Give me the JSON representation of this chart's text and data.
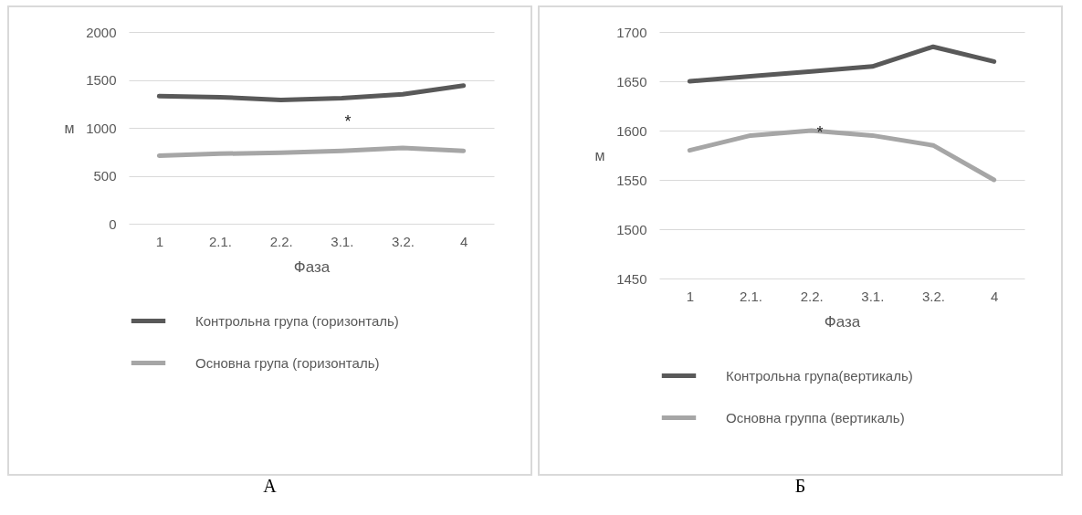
{
  "chart_data": [
    {
      "type": "line",
      "xlabel": "Фаза",
      "ylabel": "м",
      "categories": [
        "1",
        "2.1.",
        "2.2.",
        "3.1.",
        "3.2.",
        "4"
      ],
      "series": [
        {
          "name": "Контрольна група (горизонталь)",
          "color": "#595959",
          "values": [
            1330,
            1320,
            1290,
            1310,
            1350,
            1440
          ]
        },
        {
          "name": "Основна група (горизонталь)",
          "color": "#a6a6a6",
          "values": [
            710,
            730,
            740,
            760,
            790,
            760
          ]
        }
      ],
      "ylim": [
        0,
        2000
      ],
      "yticks": [
        0,
        500,
        1000,
        1500,
        2000
      ],
      "grid": "y",
      "legend": "bottom",
      "line_style": "solid",
      "annotations": [
        "*",
        "А"
      ]
    },
    {
      "type": "line",
      "xlabel": "Фаза",
      "ylabel": "м",
      "categories": [
        "1",
        "2.1.",
        "2.2.",
        "3.1.",
        "3.2.",
        "4"
      ],
      "series": [
        {
          "name": "Контрольна група(вертикаль)",
          "color": "#595959",
          "values": [
            1650,
            1655,
            1660,
            1665,
            1685,
            1670
          ]
        },
        {
          "name": "Основна группа (вертикаль)",
          "color": "#a6a6a6",
          "values": [
            1580,
            1595,
            1600,
            1595,
            1585,
            1550
          ]
        }
      ],
      "ylim": [
        1450,
        1700
      ],
      "yticks": [
        1450,
        1500,
        1550,
        1600,
        1650,
        1700
      ],
      "grid": "y",
      "legend": "bottom",
      "line_style": "solid",
      "annotations": [
        "*",
        "Б"
      ]
    }
  ]
}
